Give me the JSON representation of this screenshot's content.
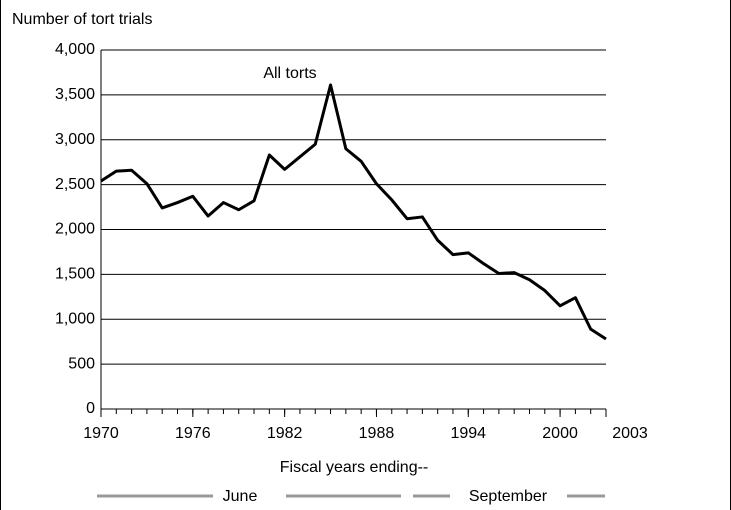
{
  "chart_data": {
    "type": "line",
    "y_axis_label": "Number of tort trials",
    "x_axis_label": "Fiscal years ending--",
    "period_labels": [
      "June",
      "September"
    ],
    "annotation": "All torts",
    "x": [
      1970,
      1971,
      1972,
      1973,
      1974,
      1975,
      1976,
      1977,
      1978,
      1979,
      1980,
      1981,
      1982,
      1983,
      1984,
      1985,
      1986,
      1987,
      1988,
      1989,
      1990,
      1991,
      1992,
      1993,
      1994,
      1995,
      1996,
      1997,
      1998,
      1999,
      2000,
      2001,
      2002,
      2003
    ],
    "series": [
      {
        "name": "All torts",
        "color": "#000000",
        "values": [
          2540,
          2650,
          2660,
          2510,
          2240,
          2300,
          2370,
          2150,
          2300,
          2220,
          2320,
          2830,
          2670,
          2810,
          2950,
          3610,
          2900,
          2760,
          2510,
          2330,
          2120,
          2140,
          1880,
          1720,
          1740,
          1620,
          1510,
          1520,
          1440,
          1320,
          1150,
          1240,
          890,
          780
        ]
      }
    ],
    "xlim": [
      1970,
      2003
    ],
    "xticks": [
      1970,
      1976,
      1982,
      1988,
      1994,
      2000,
      2003
    ],
    "ylim": [
      0,
      4000
    ],
    "yticks": [
      0,
      500,
      {
        "value": 1000,
        "label": "1,000"
      },
      {
        "value": 1500,
        "label": "1,500"
      },
      {
        "value": 2000,
        "label": "2,000"
      },
      {
        "value": 2500,
        "label": "2,500"
      },
      {
        "value": 3000,
        "label": "3,000"
      },
      {
        "value": 3500,
        "label": "3,500"
      },
      {
        "value": 4000,
        "label": "4,000"
      }
    ],
    "grid": true
  }
}
